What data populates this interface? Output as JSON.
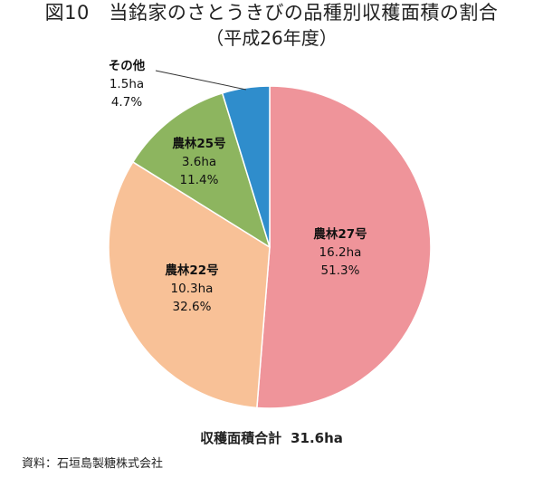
{
  "title": "図10　当銘家のさとうきびの品種別収穫面積の割合",
  "subtitle": "（平成26年度）",
  "chart_data": {
    "type": "pie",
    "slices": [
      {
        "name": "農林27号",
        "value_ha": 16.2,
        "value_text": "16.2ha",
        "percent": 51.3,
        "percent_text": "51.3%",
        "color": "#EF949A"
      },
      {
        "name": "農林22号",
        "value_ha": 10.3,
        "value_text": "10.3ha",
        "percent": 32.6,
        "percent_text": "32.6%",
        "color": "#F8C197"
      },
      {
        "name": "農林25号",
        "value_ha": 3.6,
        "value_text": "3.6ha",
        "percent": 11.4,
        "percent_text": "11.4%",
        "color": "#8DB55F"
      },
      {
        "name": "その他",
        "value_ha": 1.5,
        "value_text": "1.5ha",
        "percent": 4.7,
        "percent_text": "4.7%",
        "color": "#2F8DCC"
      }
    ],
    "start": "12 o'clock",
    "direction": "clockwise",
    "total_label": "収穫面積合計",
    "total_value": "31.6ha"
  },
  "source": "資料：石垣島製糖株式会社"
}
